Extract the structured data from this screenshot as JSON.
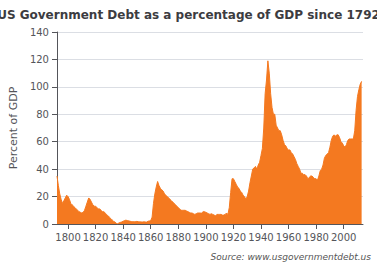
{
  "chart_data": {
    "type": "area",
    "title": "US Government Debt as a percentage of GDP since 1792",
    "ylabel": "Percent of GDP",
    "annotations": [
      "Source: www.usgovernmentdebt.us"
    ],
    "color": "#f47920",
    "grid": true,
    "xlim": [
      1792,
      2014
    ],
    "xticks": [
      1800,
      1820,
      1840,
      1860,
      1880,
      1900,
      1920,
      1940,
      1960,
      1980,
      2000
    ],
    "ylim": [
      0,
      140
    ],
    "yticks": [
      0,
      20,
      40,
      60,
      80,
      100,
      120,
      140
    ],
    "x": [
      1792,
      1793,
      1794,
      1795,
      1796,
      1797,
      1798,
      1799,
      1800,
      1801,
      1802,
      1803,
      1804,
      1805,
      1806,
      1807,
      1808,
      1809,
      1810,
      1811,
      1812,
      1813,
      1814,
      1815,
      1816,
      1817,
      1818,
      1819,
      1820,
      1821,
      1822,
      1823,
      1824,
      1825,
      1826,
      1827,
      1828,
      1829,
      1830,
      1831,
      1832,
      1833,
      1834,
      1835,
      1836,
      1837,
      1838,
      1839,
      1840,
      1841,
      1842,
      1843,
      1844,
      1845,
      1846,
      1847,
      1848,
      1849,
      1850,
      1851,
      1852,
      1853,
      1854,
      1855,
      1856,
      1857,
      1858,
      1859,
      1860,
      1861,
      1862,
      1863,
      1864,
      1865,
      1866,
      1867,
      1868,
      1869,
      1870,
      1871,
      1872,
      1873,
      1874,
      1875,
      1876,
      1877,
      1878,
      1879,
      1880,
      1881,
      1882,
      1883,
      1884,
      1885,
      1886,
      1887,
      1888,
      1889,
      1890,
      1891,
      1892,
      1893,
      1894,
      1895,
      1896,
      1897,
      1898,
      1899,
      1900,
      1901,
      1902,
      1903,
      1904,
      1905,
      1906,
      1907,
      1908,
      1909,
      1910,
      1911,
      1912,
      1913,
      1914,
      1915,
      1916,
      1917,
      1918,
      1919,
      1920,
      1921,
      1922,
      1923,
      1924,
      1925,
      1926,
      1927,
      1928,
      1929,
      1930,
      1931,
      1932,
      1933,
      1934,
      1935,
      1936,
      1937,
      1938,
      1939,
      1940,
      1941,
      1942,
      1943,
      1944,
      1945,
      1946,
      1947,
      1948,
      1949,
      1950,
      1951,
      1952,
      1953,
      1954,
      1955,
      1956,
      1957,
      1958,
      1959,
      1960,
      1961,
      1962,
      1963,
      1964,
      1965,
      1966,
      1967,
      1968,
      1969,
      1970,
      1971,
      1972,
      1973,
      1974,
      1975,
      1976,
      1977,
      1978,
      1979,
      1980,
      1981,
      1982,
      1983,
      1984,
      1985,
      1986,
      1987,
      1988,
      1989,
      1990,
      1991,
      1992,
      1993,
      1994,
      1995,
      1996,
      1997,
      1998,
      1999,
      2000,
      2001,
      2002,
      2003,
      2004,
      2005,
      2006,
      2007,
      2008,
      2009,
      2010,
      2011,
      2012,
      2013
    ],
    "values": [
      35,
      28,
      22,
      18,
      15,
      17,
      19,
      21,
      20,
      18,
      15,
      14,
      13,
      12,
      11,
      10,
      9,
      8.5,
      8,
      8.5,
      10,
      13,
      16,
      19,
      18,
      16,
      14,
      13,
      13,
      12,
      11,
      11,
      10,
      9,
      9,
      8,
      7,
      6,
      5,
      4,
      3,
      2,
      1.5,
      0.5,
      0.2,
      0.8,
      1.2,
      1.5,
      2,
      2.5,
      2.8,
      2.5,
      2.3,
      2.0,
      1.8,
      1.7,
      1.6,
      1.8,
      1.9,
      1.7,
      1.6,
      1.5,
      1.5,
      1.6,
      1.5,
      1.4,
      2.0,
      2.2,
      2.5,
      5,
      15,
      22,
      27,
      31,
      28,
      26,
      25,
      24,
      22,
      21,
      20,
      19,
      18,
      17,
      16,
      15,
      14,
      13,
      12,
      11,
      10,
      10,
      10,
      10,
      9.5,
      9,
      8.5,
      8,
      8,
      7.5,
      7,
      7.5,
      8,
      8,
      8,
      8,
      9,
      9,
      8.5,
      8,
      7.5,
      7,
      7.5,
      7,
      6.5,
      6,
      7,
      7,
      7,
      7,
      6.5,
      6.5,
      7,
      8,
      7,
      12,
      23,
      33,
      33,
      31,
      29,
      27,
      26,
      24,
      23,
      21,
      20,
      18,
      20,
      24,
      30,
      35,
      40,
      41,
      42,
      40,
      43,
      45,
      50,
      55,
      70,
      95,
      105,
      119,
      110,
      95,
      85,
      80,
      80,
      72,
      70,
      68,
      68,
      65,
      61,
      58,
      57,
      55,
      54,
      54,
      52,
      51,
      49,
      47,
      44,
      42,
      40,
      37,
      37,
      36,
      36,
      35,
      33,
      34,
      35,
      35,
      34,
      33,
      33,
      32,
      35,
      39,
      40,
      43,
      48,
      50,
      51,
      52,
      56,
      61,
      64,
      65,
      64,
      65,
      65,
      63,
      60,
      59,
      57,
      56,
      58,
      61,
      62,
      62,
      62,
      62,
      68,
      83,
      93,
      98,
      102,
      104
    ]
  }
}
